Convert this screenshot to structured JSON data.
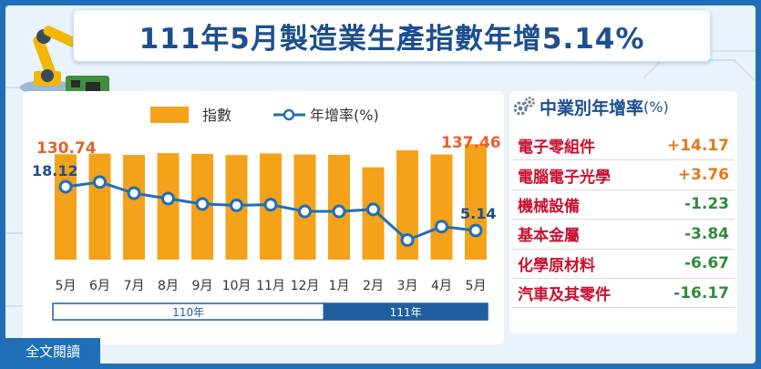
{
  "title": "111年5月製造業生產指數年增5.14%",
  "legend": {
    "index_label": "指數",
    "growth_label": "年增率(%)"
  },
  "chart_data": {
    "type": "bar+line",
    "categories": [
      "5月",
      "6月",
      "7月",
      "8月",
      "9月",
      "10月",
      "11月",
      "12月",
      "1月",
      "2月",
      "3月",
      "4月",
      "5月"
    ],
    "series": [
      {
        "name": "指數",
        "type": "bar",
        "values": [
          130.74,
          131.2,
          130.3,
          131.5,
          131.0,
          130.2,
          131.3,
          130.6,
          130.4,
          122.0,
          133.4,
          130.6,
          137.46
        ]
      },
      {
        "name": "年增率(%)",
        "type": "line",
        "values": [
          18.12,
          19.5,
          16.2,
          14.6,
          13.0,
          12.6,
          12.8,
          10.8,
          10.8,
          11.4,
          2.3,
          6.3,
          5.14
        ]
      }
    ],
    "labels": {
      "first_index": "130.74",
      "last_index": "137.46",
      "first_growth": "18.12",
      "last_growth": "5.14"
    },
    "year_groups": [
      {
        "label": "110年",
        "count": 8
      },
      {
        "label": "111年",
        "count": 5
      }
    ],
    "bar_color": "#f5a21b",
    "line_color": "#1f6fb5"
  },
  "industries": {
    "title": "中業別年增率",
    "unit": "(%)",
    "items": [
      {
        "name": "電子零組件",
        "value": "+14.17",
        "sign": "pos"
      },
      {
        "name": "電腦電子光學",
        "value": "+3.76",
        "sign": "pos"
      },
      {
        "name": "機械設備",
        "value": "-1.23",
        "sign": "neg"
      },
      {
        "name": "基本金屬",
        "value": "-3.84",
        "sign": "neg"
      },
      {
        "name": "化學原材料",
        "value": "-6.67",
        "sign": "neg"
      },
      {
        "name": "汽車及其零件",
        "value": "-16.17",
        "sign": "neg"
      }
    ]
  },
  "read_button": "全文閱讀"
}
